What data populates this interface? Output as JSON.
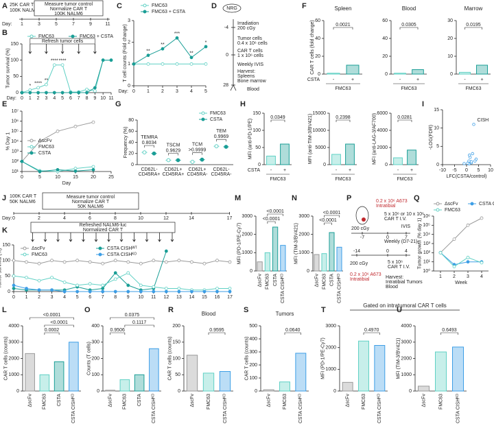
{
  "chart_data": [
    {
      "panel": "B",
      "type": "line",
      "ylabel": "Tumor survival (%)",
      "xlabel": "Day:",
      "note": "Refresh tumor cells",
      "x": [
        0,
        1,
        2,
        3,
        4,
        5,
        6,
        7,
        8,
        9,
        10,
        11
      ],
      "series": [
        {
          "name": "FMC63",
          "color": "#5fd0c4",
          "marker": "open",
          "values": [
            0,
            8,
            15,
            25,
            85,
            85,
            2,
            2,
            10,
            5,
            100,
            100
          ]
        },
        {
          "name": "FMC63 + CSTA",
          "color": "#1a9e96",
          "marker": "filled",
          "values": [
            0,
            0,
            0,
            0,
            0,
            0,
            0,
            0,
            0,
            15,
            100,
            100
          ]
        }
      ],
      "xlim": [
        0,
        11
      ],
      "xticks": [
        0,
        1,
        2,
        3,
        4,
        5,
        6,
        7,
        8,
        9,
        10,
        11
      ],
      "ylim": [
        0,
        150
      ],
      "yticks": [
        0,
        50,
        100,
        150
      ],
      "annotations": [
        {
          "label": "*",
          "x": 1
        },
        {
          "label": "****",
          "x": 2
        },
        {
          "label": "**",
          "x": 3
        },
        {
          "label": "****",
          "x": 4
        },
        {
          "label": "****",
          "x": 5
        }
      ]
    },
    {
      "panel": "C",
      "type": "line",
      "ylabel": "T cell counts (Fold change)",
      "xlabel": "Day:",
      "x": [
        0,
        1,
        2,
        3,
        4,
        5
      ],
      "series": [
        {
          "name": "FMC63",
          "color": "#5fd0c4",
          "marker": "open",
          "values": [
            1,
            1,
            1,
            1,
            1,
            1
          ]
        },
        {
          "name": "FMC63 + CSTA",
          "color": "#1a9e96",
          "marker": "filled",
          "values": [
            1,
            1.4,
            1.7,
            2.2,
            1.3,
            1.8
          ]
        }
      ],
      "xlim": [
        0,
        5
      ],
      "xticks": [
        0,
        1,
        2,
        3,
        4,
        5
      ],
      "ylim": [
        0,
        3
      ],
      "yticks": [
        0,
        1,
        2,
        3
      ],
      "annotations": [
        {
          "label": "**",
          "x": 1
        },
        {
          "label": "**",
          "x": 2
        },
        {
          "label": "***",
          "x": 3
        },
        {
          "label": "**",
          "x": 4
        },
        {
          "label": "*",
          "x": 5
        }
      ]
    },
    {
      "panel": "E",
      "type": "line",
      "log": true,
      "ylabel": "% Day 1",
      "xlabel": "Day",
      "x": [
        0,
        5,
        10,
        15,
        20
      ],
      "series": [
        {
          "name": "ΔscFv",
          "color": "#999999",
          "marker": "open",
          "values": [
            100,
            10000,
            100000,
            300000,
            800000
          ]
        },
        {
          "name": "FMC63",
          "color": "#5fd0c4",
          "marker": "open",
          "values": [
            100,
            12,
            10,
            20,
            30
          ]
        },
        {
          "name": "CSTA",
          "color": "#1a9e96",
          "marker": "filled",
          "values": [
            100,
            10,
            15,
            11,
            15
          ]
        }
      ],
      "xlim": [
        0,
        25
      ],
      "xticks": [
        0,
        5,
        10,
        15,
        20,
        25
      ],
      "ylim": [
        10,
        10000000
      ],
      "yticks": [
        {
          "value": 10,
          "label": "10¹"
        },
        {
          "value": 100,
          "label": "10²"
        },
        {
          "value": 1000,
          "label": "10³"
        },
        {
          "value": 10000,
          "label": "10⁴"
        },
        {
          "value": 100000,
          "label": "10⁵"
        },
        {
          "value": 1000000,
          "label": "10⁶"
        },
        {
          "value": 10000000,
          "label": "10⁷"
        }
      ]
    },
    {
      "panel": "F",
      "type": "bar",
      "title": "Spleen",
      "ylabel": "CAR T cells (fold change)",
      "row_label": "CSTA",
      "group_label": "FMC63",
      "categories": [
        "-",
        "+"
      ],
      "values": [
        1,
        10
      ],
      "colors": [
        "#5fd0c4",
        "#1a9e96"
      ],
      "ylim": [
        0,
        60
      ],
      "yticks": [
        0,
        20,
        40,
        60
      ],
      "comparisons": [
        "0.0021"
      ]
    },
    {
      "type": "bar",
      "title": "Blood",
      "group_label": "FMC63",
      "categories": [
        "-",
        "+"
      ],
      "values": [
        1,
        5
      ],
      "colors": [
        "#5fd0c4",
        "#1a9e96"
      ],
      "ylim": [
        0,
        60
      ],
      "yticks": [
        0,
        20,
        40,
        60
      ],
      "comparisons": [
        "0.0305"
      ]
    },
    {
      "type": "bar",
      "title": "Marrow",
      "group_label": "FMC63",
      "categories": [
        "-",
        "+"
      ],
      "values": [
        1,
        5
      ],
      "colors": [
        "#5fd0c4",
        "#1a9e96"
      ],
      "ylim": [
        0,
        30
      ],
      "yticks": [
        0,
        10,
        20,
        30
      ],
      "comparisons": [
        "0.0195"
      ]
    },
    {
      "panel": "G",
      "type": "dot",
      "ylabel": "Frequency (%)",
      "categories": [
        [
          "CD62L-",
          "CD45RA+"
        ],
        [
          "CD62L+",
          "CD45RA+"
        ],
        [
          "CD62L+",
          "CD45RA-"
        ],
        [
          "CD62L-",
          "CD45RA-"
        ]
      ],
      "series": [
        {
          "name": "FMC63",
          "color": "#5fd0c4",
          "marker": "open",
          "values": [
            22,
            8,
            5,
            33
          ]
        },
        {
          "name": "CSTA",
          "color": "#1a9e96",
          "marker": "filled",
          "values": [
            20,
            8,
            9,
            32
          ]
        }
      ],
      "ylim": [
        0,
        80
      ],
      "yticks": [
        0,
        20,
        40,
        60,
        80
      ],
      "group_labels": [
        "TEMRA",
        "TSCM",
        "TCM",
        "TEM"
      ],
      "comparisons": [
        "0.8034",
        "0.9629",
        ">0.9999",
        "0.9969"
      ]
    },
    {
      "panel": "H",
      "type": "bar",
      "ylabel": "MFI (anti-PD-1/PE)",
      "row_label": "CSTA",
      "group_label": "FMC63",
      "categories": [
        "-",
        "+"
      ],
      "values": [
        25,
        60
      ],
      "colors": [
        "#5fd0c4",
        "#1a9e96"
      ],
      "ylim": [
        0,
        150
      ],
      "yticks": [
        0,
        50,
        100,
        150
      ],
      "comparisons": [
        "0.0349"
      ]
    },
    {
      "type": "bar",
      "ylabel": "MFI (anti-TIM-3/BV421)",
      "group_label": "FMC63",
      "categories": [
        "-",
        "+"
      ],
      "values": [
        3000,
        6000
      ],
      "colors": [
        "#5fd0c4",
        "#1a9e96"
      ],
      "ylim": [
        0,
        15000
      ],
      "yticks": [
        0,
        5000,
        10000,
        15000
      ],
      "comparisons": [
        "0.2398"
      ]
    },
    {
      "type": "bar",
      "ylabel": "MFI (anti-LAG-3/AF700)",
      "group_label": "FMC63",
      "categories": [
        "-",
        "+"
      ],
      "values": [
        800,
        1700
      ],
      "colors": [
        "#5fd0c4",
        "#1a9e96"
      ],
      "ylim": [
        0,
        6000
      ],
      "yticks": [
        0,
        2000,
        4000,
        6000
      ],
      "comparisons": [
        "0.0281"
      ]
    },
    {
      "panel": "I",
      "type": "scatter",
      "xlabel": "LFC(CSTA/control)",
      "ylabel": "-LOG(FDR)",
      "color": "#3d9ee6",
      "point_label": "CISH",
      "x": [
        3,
        1,
        2,
        1.5,
        4,
        2.5,
        -1,
        3.5,
        1,
        2,
        0.5,
        1.2
      ],
      "values": [
        11,
        1,
        0.5,
        2,
        1.5,
        3,
        0.3,
        1,
        0.2,
        0.8,
        0.4,
        2.6
      ],
      "xlim": [
        -10,
        10
      ],
      "xticks": [
        -10,
        -5,
        0,
        5,
        10
      ],
      "ylim": [
        0,
        15
      ],
      "yticks": [
        0,
        5,
        10,
        15
      ]
    },
    {
      "panel": "K",
      "type": "line",
      "ylabel": "Tumor survival (%)",
      "x": [
        0,
        1,
        2,
        3,
        4,
        5,
        6,
        7,
        8,
        9,
        10,
        11,
        12,
        13,
        14,
        15,
        16,
        17
      ],
      "series": [
        {
          "name": "ΔscFv",
          "color": "#999999",
          "marker": "open",
          "values": [
            100,
            95,
            90,
            100,
            95,
            100,
            95,
            90,
            100,
            95,
            90,
            100,
            95,
            100,
            95,
            90,
            100,
            95
          ]
        },
        {
          "name": "CSTA CISHᵂᵀ",
          "color": "#1a9e96",
          "marker": "filled",
          "values": [
            10,
            5,
            5,
            5,
            5,
            15,
            5,
            10,
            60,
            20,
            5,
            10,
            130,
            null,
            null,
            null,
            null,
            null
          ]
        },
        {
          "name": "FMC63",
          "color": "#5fd0c4",
          "marker": "open",
          "values": [
            50,
            45,
            35,
            45,
            30,
            20,
            25,
            20,
            40,
            60,
            20,
            15,
            10,
            10,
            5,
            5,
            10,
            10
          ]
        },
        {
          "name": "CSTA CISHᴷᴼ",
          "color": "#3d9ee6",
          "marker": "filled",
          "values": [
            20,
            10,
            5,
            5,
            0,
            0,
            0,
            0,
            0,
            0,
            0,
            0,
            0,
            0,
            0,
            0,
            0,
            0
          ]
        }
      ],
      "xlim": [
        0,
        17
      ],
      "xticks": [
        0,
        1,
        2,
        3,
        4,
        5,
        6,
        7,
        8,
        9,
        10,
        11,
        12,
        13,
        14,
        15,
        16,
        17
      ],
      "ylim": [
        0,
        150
      ],
      "yticks": [
        0,
        50,
        100,
        150
      ]
    },
    {
      "panel": "M",
      "type": "bar",
      "ylabel": "MFI (PD-1/PE-Cy7)",
      "categories": [
        "ΔscFv",
        "FMC63",
        "CSTA",
        "CSTA CISHᴷᴼ"
      ],
      "values": [
        500,
        1000,
        2400,
        1400
      ],
      "colors": [
        "#999999",
        "#5fd0c4",
        "#1a9e96",
        "#3d9ee6"
      ],
      "ylim": [
        0,
        3000
      ],
      "yticks": [
        0,
        1000,
        2000,
        3000
      ],
      "comparisons": [
        "<0.0001",
        "<0.0001"
      ]
    },
    {
      "panel": "N",
      "type": "bar",
      "ylabel": "MFI (TIM-3/BV421)",
      "categories": [
        "ΔscFv",
        "FMC63",
        "CSTA",
        "CSTA CISHᴷᴼ"
      ],
      "values": [
        900,
        950,
        2100,
        1300
      ],
      "colors": [
        "#999999",
        "#5fd0c4",
        "#1a9e96",
        "#3d9ee6"
      ],
      "ylim": [
        0,
        3000
      ],
      "yticks": [
        0,
        1000,
        2000,
        3000
      ],
      "comparisons": [
        "<0.0001",
        "<0.0001"
      ]
    },
    {
      "panel": "Q",
      "type": "line",
      "log": true,
      "ylabel": "Tumor growth (% day 1)",
      "xlabel": "Week",
      "x": [
        1,
        2,
        3,
        4
      ],
      "series": [
        {
          "name": "ΔscFv",
          "color": "#999999",
          "marker": "open",
          "values": [
            100,
            3000,
            100000,
            600000
          ]
        },
        {
          "name": "CSTA CISHᴷᴼ",
          "color": "#3d9ee6",
          "marker": "filled",
          "values": [
            100,
            5,
            10,
            10
          ]
        },
        {
          "name": "FMC63",
          "color": "#5fd0c4",
          "marker": "open",
          "values": [
            100,
            3,
            30,
            8
          ]
        }
      ],
      "xlim": [
        0.5,
        4.5
      ],
      "xticks": [
        1,
        2,
        3,
        4
      ],
      "ylim": [
        1,
        1000000
      ],
      "yticks": [
        {
          "value": 1,
          "label": "10⁰"
        },
        {
          "value": 10,
          "label": "10¹"
        },
        {
          "value": 100,
          "label": "10²"
        },
        {
          "value": 1000,
          "label": "10³"
        },
        {
          "value": 10000,
          "label": "10⁴"
        },
        {
          "value": 100000,
          "label": "10⁵"
        },
        {
          "value": 1000000,
          "label": "10⁶"
        }
      ]
    },
    {
      "panel": "L",
      "type": "bar",
      "ylabel": "CAR T cells (counts)",
      "categories": [
        "ΔscFv",
        "FMC63",
        "CSTA",
        "CSTA CISHᴷᴼ"
      ],
      "values": [
        2300,
        1000,
        1800,
        3000
      ],
      "colors": [
        "#999999",
        "#5fd0c4",
        "#1a9e96",
        "#3d9ee6"
      ],
      "ylim": [
        0,
        4000
      ],
      "yticks": [
        0,
        1000,
        2000,
        3000,
        4000
      ],
      "comparisons": [
        "0.0002",
        "<0.0001",
        "<0.0001"
      ]
    },
    {
      "panel": "O",
      "type": "bar",
      "ylabel": "Counts (T cells)",
      "categories": [
        "ΔscFv",
        "FMC63",
        "CSTA",
        "CSTA CISHᴷᴼ"
      ],
      "values": [
        5,
        70,
        100,
        260
      ],
      "colors": [
        "#999999",
        "#5fd0c4",
        "#1a9e96",
        "#3d9ee6"
      ],
      "ylim": [
        0,
        400
      ],
      "yticks": [
        0,
        100,
        200,
        300,
        400
      ],
      "comparisons": [
        "0.9506",
        "0.1117",
        "0.0375"
      ]
    },
    {
      "panel": "R",
      "type": "bar",
      "title": "Blood",
      "ylabel": "CAR T cells (counts)",
      "categories": [
        "ΔscFv",
        "FMC63",
        "CSTA CISHᴷᴼ"
      ],
      "values": [
        110,
        55,
        60
      ],
      "colors": [
        "#999999",
        "#5fd0c4",
        "#3d9ee6"
      ],
      "ylim": [
        0,
        200
      ],
      "yticks": [
        0,
        50,
        100,
        150,
        200
      ],
      "comparisons": [
        "0.9595"
      ]
    },
    {
      "panel": "S",
      "type": "bar",
      "title": "Tumors",
      "ylabel": "CAR T cells (counts)",
      "categories": [
        "ΔscFv",
        "FMC63",
        "CSTA CISHᴷᴼ"
      ],
      "values": [
        10,
        70,
        290
      ],
      "colors": [
        "#999999",
        "#5fd0c4",
        "#3d9ee6"
      ],
      "ylim": [
        0,
        500
      ],
      "yticks": [
        0,
        100,
        200,
        300,
        400,
        500
      ],
      "comparisons": [
        "0.0640"
      ]
    },
    {
      "panel": "T",
      "type": "bar",
      "ylabel": "MFI (PD-1/PE-Cy7)",
      "categories": [
        "ΔscFv",
        "FMC63",
        "CSTA CISHᴷᴼ"
      ],
      "values": [
        400,
        2300,
        2100
      ],
      "colors": [
        "#999999",
        "#5fd0c4",
        "#3d9ee6"
      ],
      "ylim": [
        0,
        3000
      ],
      "yticks": [
        0,
        1000,
        2000,
        3000
      ],
      "comparisons": [
        "0.4970"
      ]
    },
    {
      "panel": "U",
      "type": "bar",
      "ylabel": "MFI (TIM-3/BV421)",
      "categories": [
        "ΔscFv",
        "FMC63",
        "CSTA CISHᴷᴼ"
      ],
      "values": [
        300,
        2400,
        2700
      ],
      "colors": [
        "#999999",
        "#5fd0c4",
        "#3d9ee6"
      ],
      "ylim": [
        0,
        4000
      ],
      "yticks": [
        0,
        1000,
        2000,
        3000,
        4000
      ],
      "comparisons": [
        "0.6493"
      ]
    }
  ],
  "diagrams": {
    "A": {
      "panel": "A",
      "left": [
        "25K CAR T",
        "100K NALM6"
      ],
      "box": [
        "Measure tumor control",
        "Normalize CAR T",
        "100K NALM6"
      ],
      "axis_label": "Day:",
      "days": [
        "1",
        "3",
        "5",
        "7",
        "9",
        "11"
      ]
    },
    "D": {
      "panel": "D",
      "mouse": "NRG",
      "days": [
        "-4",
        "0",
        "28"
      ],
      "events": [
        "Irradiation",
        "200 cGy",
        "Tumor cells",
        "0.4 x 10⁶ cells",
        "CAR T cells",
        "1 x 10⁶ cells",
        "Weekly IVIS",
        "Harvest:",
        "Spleens",
        "Bone marrow",
        "Blood"
      ]
    },
    "J": {
      "panel": "J",
      "left": [
        "100K CAR T",
        "50K NALM6"
      ],
      "box": [
        "Measure tumor control",
        "Normalize CAR T",
        "50K NALM6"
      ],
      "axis_label": "Day:",
      "days": [
        "0",
        "2",
        "4",
        "6",
        "8",
        "10",
        "12",
        "14",
        "17"
      ],
      "refresh": [
        "Refreshed NALM6-luc",
        "Normalized CAR T"
      ]
    },
    "P": {
      "panel": "P",
      "top": [
        "200 cGy",
        "0.2 x 10⁶ A673",
        "Intratibial",
        "5 x 10⁶ or 10 x 10⁶",
        "CAR T I.V.",
        "IVIS",
        "Weekly (D7-21)"
      ],
      "top_days": [
        "-7",
        "0",
        "7"
      ],
      "bottom": [
        "200 cGy",
        "0.2 x 10⁶ A673",
        "Intratibial",
        "5 x 10⁶",
        "CAR T I.V.",
        "Harvest:",
        "Intratibial Tumors",
        "Blood"
      ],
      "bottom_days": [
        "-14",
        "0",
        "4"
      ]
    },
    "header": "Gated on intratumoral CAR T cells"
  }
}
